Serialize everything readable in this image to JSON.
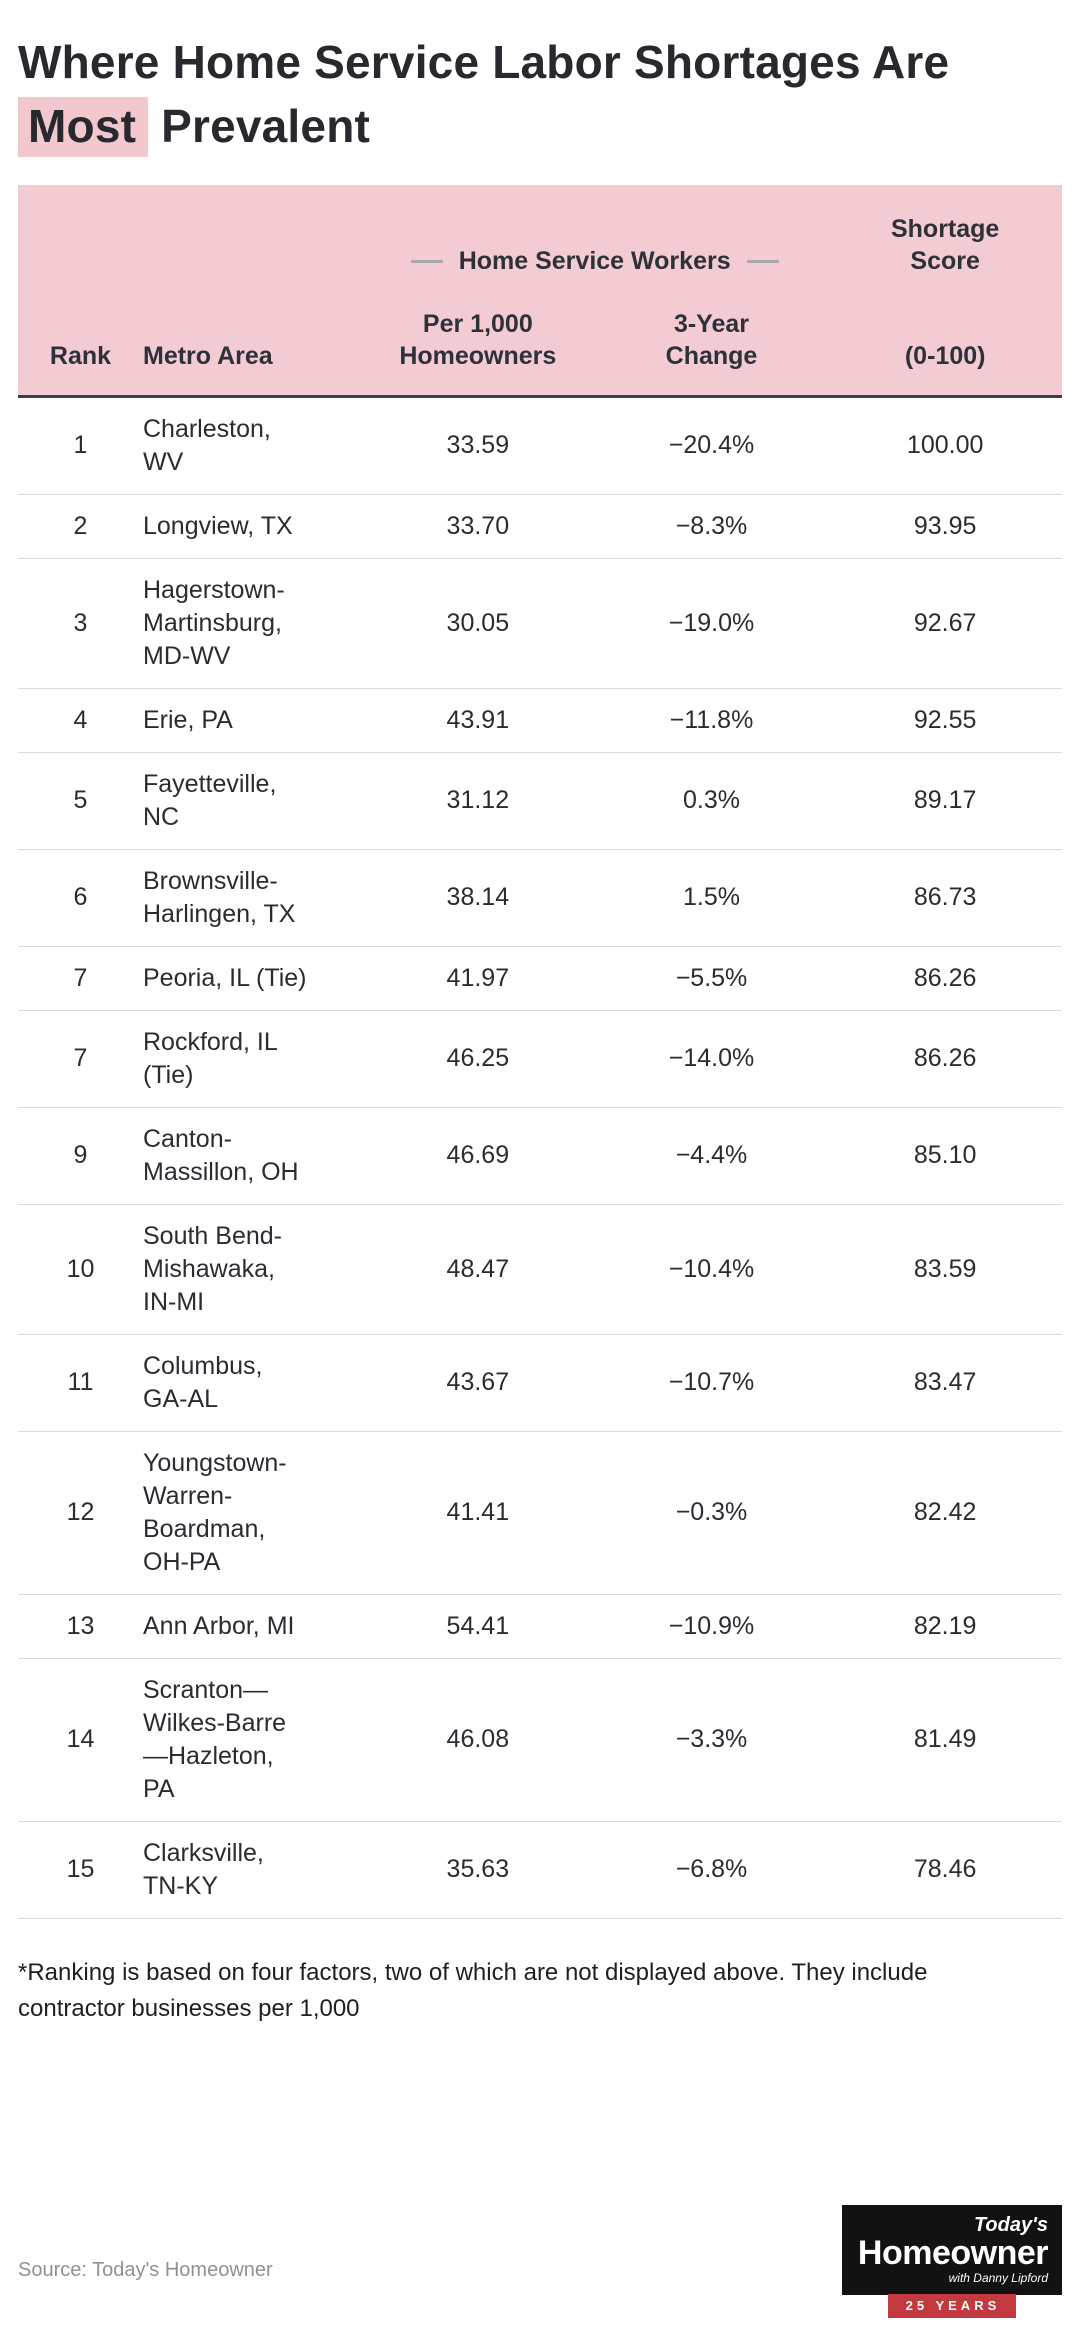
{
  "title": {
    "pre": "Where Home Service Labor Shortages Are",
    "highlight": "Most",
    "post": " Prevalent"
  },
  "chart_data": {
    "type": "table",
    "title": "Where Home Service Labor Shortages Are Most Prevalent",
    "group_header": "Home Service Workers",
    "headers": {
      "rank": "Rank",
      "metro": "Metro Area",
      "per_1000": "Per 1,000\nHomeowners",
      "change": "3-Year\nChange",
      "score_title": "Shortage\nScore",
      "score_range": "(0-100)"
    },
    "rows": [
      {
        "rank": "1",
        "metro": "Charleston, WV",
        "per_1000": "33.59",
        "change": "−20.4%",
        "score": "100.00"
      },
      {
        "rank": "2",
        "metro": "Longview, TX",
        "per_1000": "33.70",
        "change": "−8.3%",
        "score": "93.95"
      },
      {
        "rank": "3",
        "metro": "Hagerstown-Martinsburg, MD-WV",
        "per_1000": "30.05",
        "change": "−19.0%",
        "score": "92.67"
      },
      {
        "rank": "4",
        "metro": "Erie, PA",
        "per_1000": "43.91",
        "change": "−11.8%",
        "score": "92.55"
      },
      {
        "rank": "5",
        "metro": "Fayetteville, NC",
        "per_1000": "31.12",
        "change": "0.3%",
        "score": "89.17"
      },
      {
        "rank": "6",
        "metro": "Brownsville-Harlingen, TX",
        "per_1000": "38.14",
        "change": "1.5%",
        "score": "86.73"
      },
      {
        "rank": "7",
        "metro": "Peoria, IL (Tie)",
        "per_1000": "41.97",
        "change": "−5.5%",
        "score": "86.26"
      },
      {
        "rank": "7",
        "metro": "Rockford, IL (Tie)",
        "per_1000": "46.25",
        "change": "−14.0%",
        "score": "86.26"
      },
      {
        "rank": "9",
        "metro": "Canton-Massillon, OH",
        "per_1000": "46.69",
        "change": "−4.4%",
        "score": "85.10"
      },
      {
        "rank": "10",
        "metro": "South Bend-Mishawaka, IN-MI",
        "per_1000": "48.47",
        "change": "−10.4%",
        "score": "83.59"
      },
      {
        "rank": "11",
        "metro": "Columbus, GA-AL",
        "per_1000": "43.67",
        "change": "−10.7%",
        "score": "83.47"
      },
      {
        "rank": "12",
        "metro": "Youngstown-Warren-Boardman, OH-PA",
        "per_1000": "41.41",
        "change": "−0.3%",
        "score": "82.42"
      },
      {
        "rank": "13",
        "metro": "Ann Arbor, MI",
        "per_1000": "54.41",
        "change": "−10.9%",
        "score": "82.19"
      },
      {
        "rank": "14",
        "metro": "Scranton—Wilkes-Barre—Hazleton, PA",
        "per_1000": "46.08",
        "change": "−3.3%",
        "score": "81.49"
      },
      {
        "rank": "15",
        "metro": "Clarksville, TN-KY",
        "per_1000": "35.63",
        "change": "−6.8%",
        "score": "78.46"
      }
    ]
  },
  "footnote": "*Ranking is based on four factors, two of which are not displayed above. They include contractor businesses per 1,000",
  "source": "Source: Today's Homeowner",
  "logo": {
    "top": "Today's",
    "main": "Homeowner",
    "sub": "with Danny Lipford",
    "ribbon": "25 YEARS"
  },
  "colors": {
    "header_bg": "#f3ccd3",
    "highlight_bg": "#f3c7ce",
    "rule": "#3f4144",
    "row_border": "#dcdcdc",
    "text": "#26292e",
    "muted": "#8e9196",
    "ribbon_red": "#c23a40",
    "logo_bg": "#121212"
  }
}
